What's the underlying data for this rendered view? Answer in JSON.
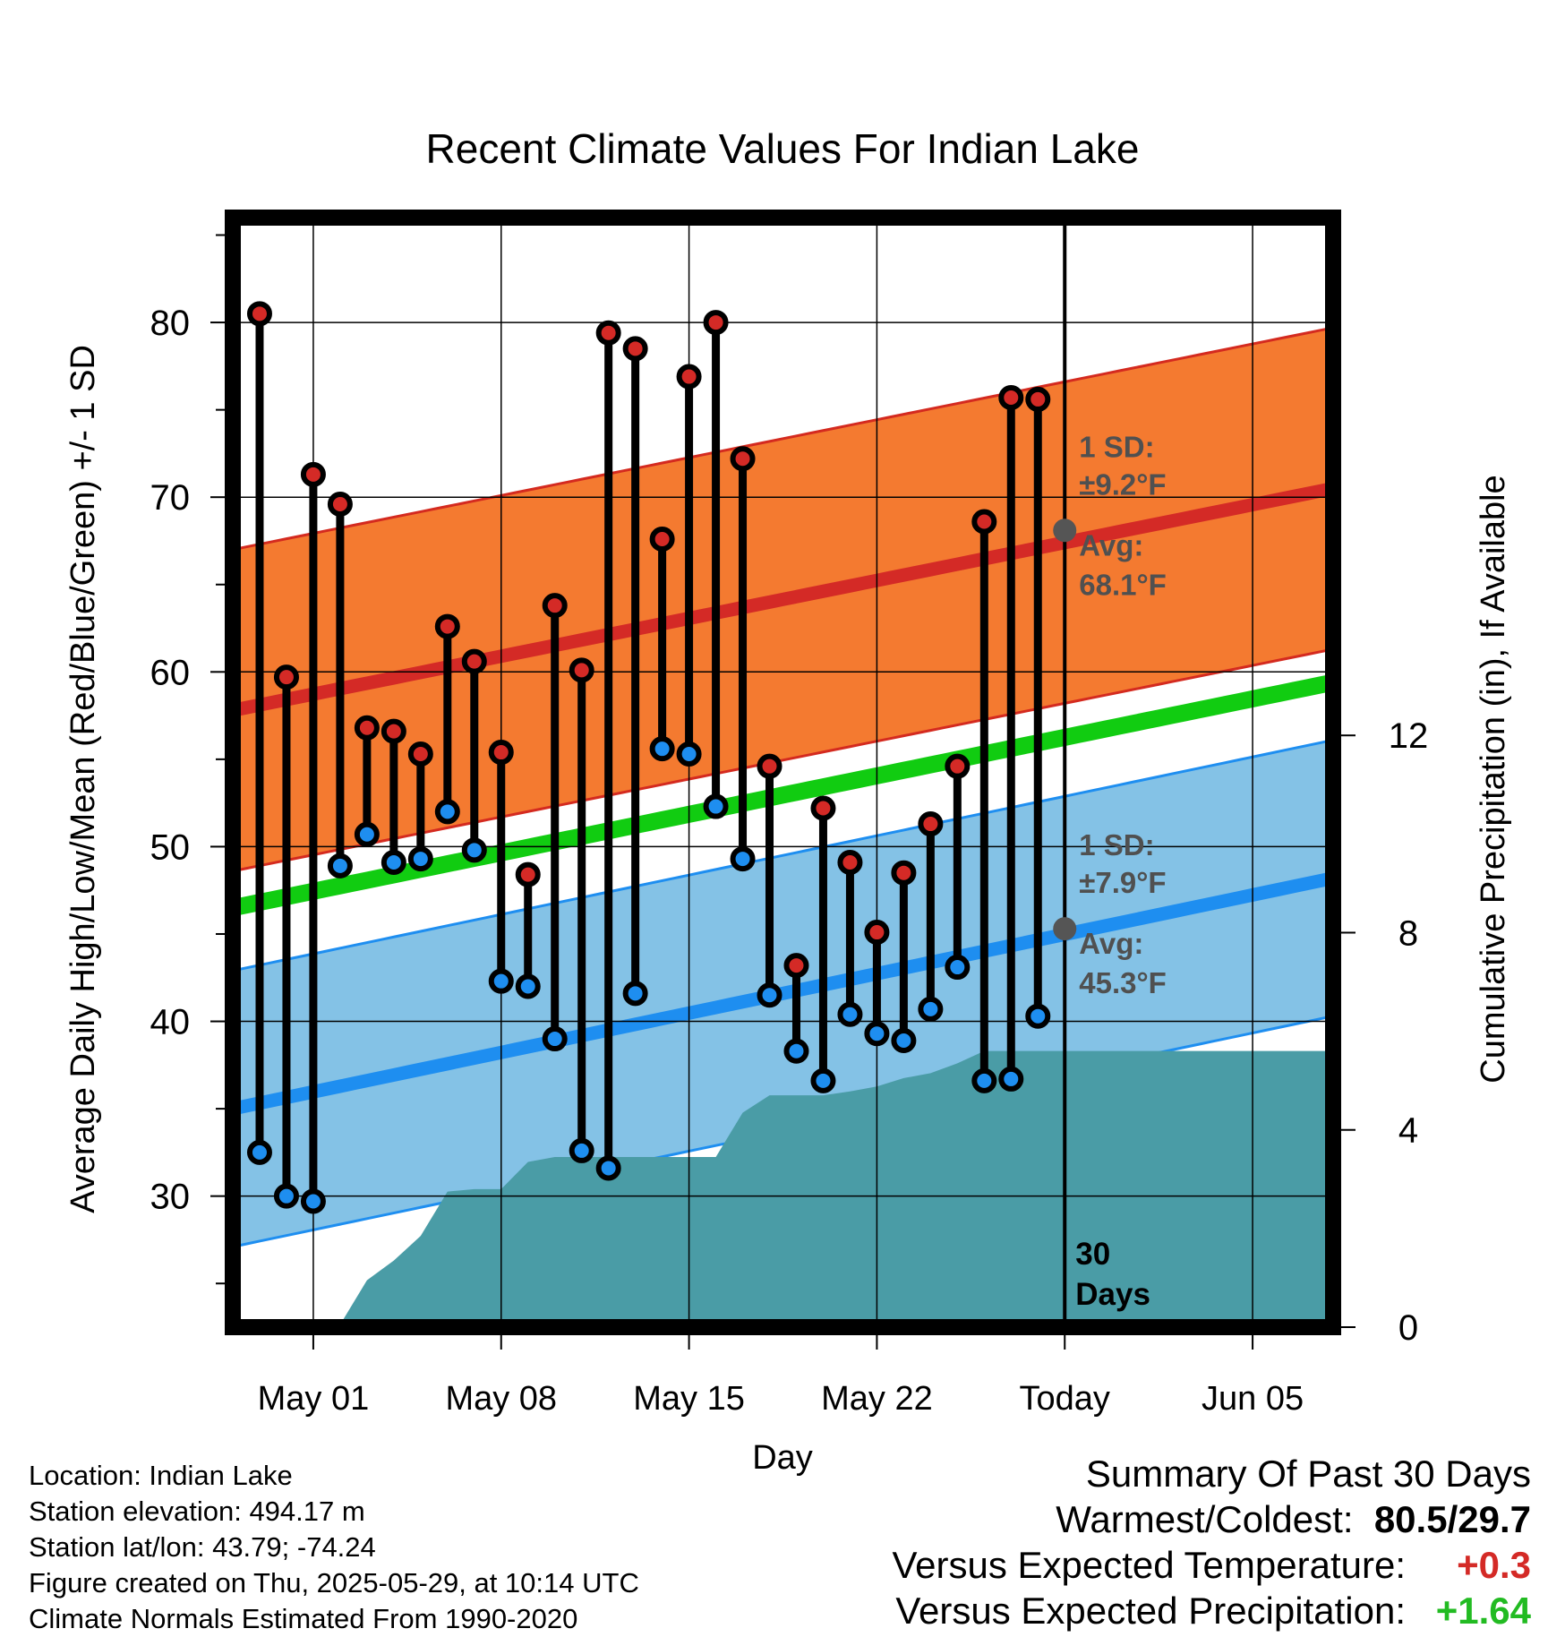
{
  "chart_data": {
    "type": "line",
    "title": "Recent Climate Values For Indian Lake",
    "xlabel": "Day",
    "ylabel": "Average Daily High/Low/Mean (Red/Blue/Green) +/- 1 SD",
    "y2label": "Cumulative Precipitation (in), If Available",
    "x_day_range": [
      -2,
      39
    ],
    "ylim": [
      22.5,
      86
    ],
    "y2lim": [
      0,
      22.5
    ],
    "y_ticks": [
      30,
      40,
      50,
      60,
      70,
      80
    ],
    "y2_ticks": [
      0,
      4,
      8,
      12
    ],
    "x_ticks": [
      {
        "day": 1,
        "label": "May 01"
      },
      {
        "day": 8,
        "label": "May 08"
      },
      {
        "day": 15,
        "label": "May 15"
      },
      {
        "day": 22,
        "label": "May 22"
      },
      {
        "day": 29,
        "label": "Today"
      },
      {
        "day": 36,
        "label": "Jun 05"
      }
    ],
    "today_day": 29,
    "days": [
      -1,
      0,
      1,
      2,
      3,
      4,
      5,
      6,
      7,
      8,
      9,
      10,
      11,
      12,
      13,
      14,
      15,
      16,
      17,
      18,
      19,
      20,
      21,
      22,
      23,
      24,
      25,
      26,
      27,
      28
    ],
    "daily_high": [
      80.5,
      59.7,
      71.3,
      69.6,
      56.8,
      56.6,
      55.3,
      62.6,
      60.6,
      55.4,
      48.4,
      63.8,
      60.1,
      79.4,
      78.5,
      67.6,
      76.9,
      80.0,
      72.2,
      54.6,
      43.2,
      52.2,
      49.1,
      45.1,
      48.5,
      51.3,
      54.6,
      68.6,
      75.7,
      75.6
    ],
    "daily_low": [
      32.5,
      30.0,
      29.7,
      48.9,
      50.7,
      49.1,
      49.3,
      52.0,
      49.8,
      42.3,
      42.0,
      39.0,
      32.6,
      31.6,
      41.6,
      55.6,
      55.3,
      52.3,
      49.3,
      41.5,
      38.3,
      36.6,
      40.4,
      39.3,
      38.9,
      40.7,
      43.1,
      36.6,
      36.7,
      40.3
    ],
    "normals": {
      "high_avg_start": 57.8,
      "high_avg_end": 70.5,
      "high_avg_today": 68.1,
      "high_sd": 9.2,
      "low_avg_start": 35.0,
      "low_avg_end": 48.2,
      "low_avg_today": 45.3,
      "low_sd": 7.9,
      "mean_start": 46.5,
      "mean_end": 59.4
    },
    "precip_cumulative": [
      {
        "day": -1,
        "value": 0.0
      },
      {
        "day": 0,
        "value": 0.0
      },
      {
        "day": 1,
        "value": 0.0
      },
      {
        "day": 2,
        "value": 0.05
      },
      {
        "day": 3,
        "value": 0.95
      },
      {
        "day": 4,
        "value": 1.35
      },
      {
        "day": 5,
        "value": 1.85
      },
      {
        "day": 6,
        "value": 2.75
      },
      {
        "day": 7,
        "value": 2.8
      },
      {
        "day": 8,
        "value": 2.8
      },
      {
        "day": 9,
        "value": 3.35
      },
      {
        "day": 10,
        "value": 3.45
      },
      {
        "day": 15,
        "value": 3.45
      },
      {
        "day": 16,
        "value": 3.45
      },
      {
        "day": 17,
        "value": 4.35
      },
      {
        "day": 18,
        "value": 4.7
      },
      {
        "day": 19,
        "value": 4.7
      },
      {
        "day": 20,
        "value": 4.7
      },
      {
        "day": 21,
        "value": 4.78
      },
      {
        "day": 22,
        "value": 4.88
      },
      {
        "day": 23,
        "value": 5.05
      },
      {
        "day": 24,
        "value": 5.15
      },
      {
        "day": 25,
        "value": 5.35
      },
      {
        "day": 26,
        "value": 5.6
      },
      {
        "day": 39,
        "value": 5.6
      }
    ],
    "annotations": {
      "high_sd_label": "1 SD:",
      "high_sd_value": "±9.2°F",
      "high_avg_label": "Avg:",
      "high_avg_value": "68.1°F",
      "low_sd_label": "1 SD:",
      "low_sd_value": "±7.9°F",
      "low_avg_label": "Avg:",
      "low_avg_value": "45.3°F",
      "days_line1": "30",
      "days_line2": "Days"
    },
    "colors": {
      "high_band": "#f47a30",
      "high_band_edge": "#d42a1f",
      "high_avg_line": "#d42a26",
      "low_band": "#84c2e6",
      "low_band_edge": "#1e8ef0",
      "low_avg_line": "#1e8ef0",
      "mean_line": "#11cc11",
      "precip_fill": "#4a9ca6",
      "high_dot": "#d42a26",
      "low_dot": "#1e8ef0",
      "annot": "#505050"
    }
  },
  "footer": {
    "location": "Location: Indian Lake",
    "elevation": "Station elevation: 494.17 m",
    "latlon": "Station lat/lon: 43.79; -74.24",
    "created": "Figure created on Thu, 2025-05-29, at 10:14 UTC",
    "normals": "Climate Normals Estimated From 1990-2020"
  },
  "summary": {
    "title": "Summary Of Past 30 Days",
    "warm_cold_label": "Warmest/Coldest:",
    "warmest": "80.5",
    "slash": "/",
    "coldest": "29.7",
    "temp_label": "Versus Expected Temperature:",
    "temp_value": "+0.3",
    "temp_color": "#d42a26",
    "precip_label": "Versus Expected Precipitation:",
    "precip_value": "+1.64",
    "precip_color": "#22bb22"
  }
}
